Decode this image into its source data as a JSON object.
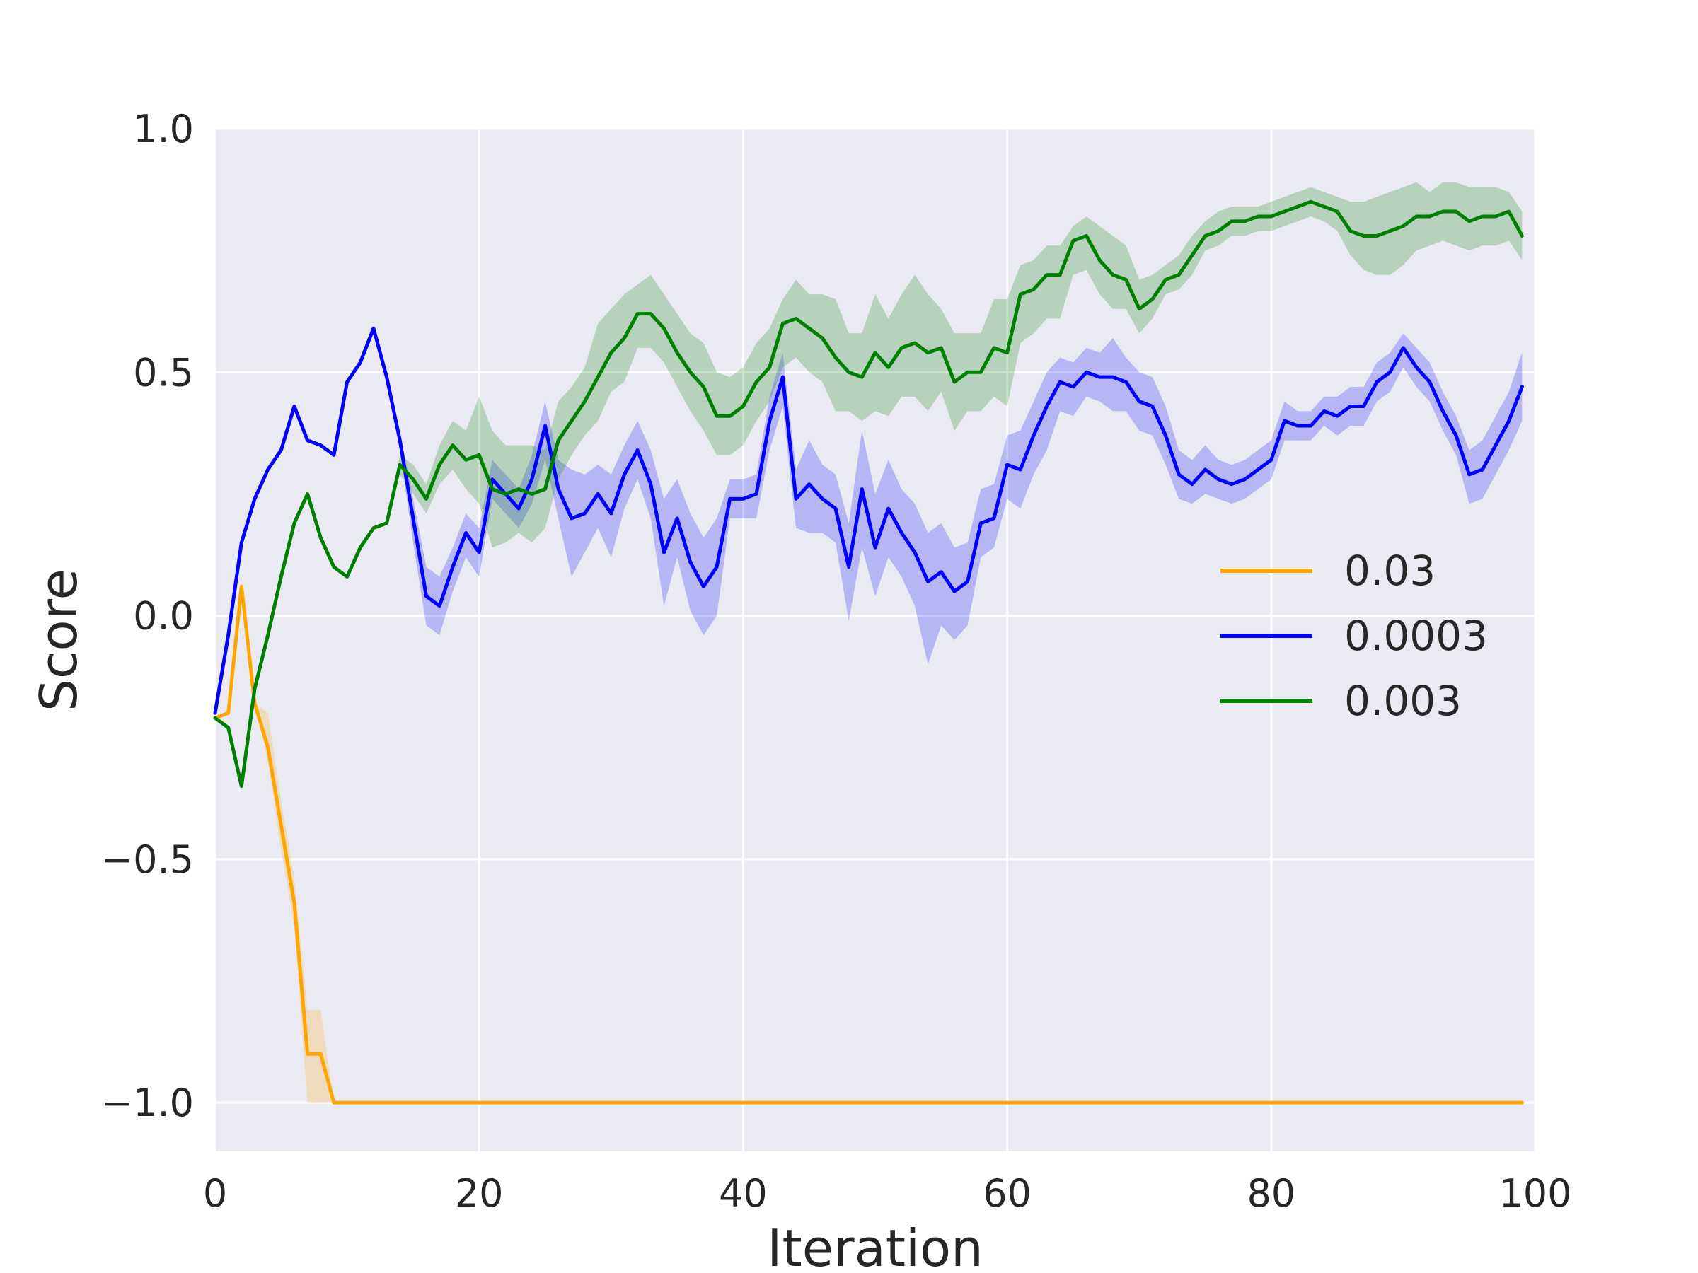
{
  "chart_data": {
    "type": "line",
    "title": "",
    "xlabel": "Iteration",
    "ylabel": "Score",
    "xlim": [
      0,
      100
    ],
    "ylim": [
      -1.1,
      1.0
    ],
    "xticks": [
      0,
      20,
      40,
      60,
      80,
      100
    ],
    "xtick_labels": [
      "0",
      "20",
      "40",
      "60",
      "80",
      "100"
    ],
    "yticks": [
      -1.0,
      -0.5,
      0.0,
      0.5,
      1.0
    ],
    "ytick_labels": [
      "−1.0",
      "−0.5",
      "0.0",
      "0.5",
      "1.0"
    ],
    "grid": true,
    "background": "#eaeaf2",
    "legend_position": "center-right",
    "series": [
      {
        "name": "0.03",
        "color": "#ffa500",
        "x": [
          0,
          1,
          2,
          3,
          4,
          5,
          6,
          7,
          8,
          9,
          10,
          15,
          20,
          30,
          40,
          50,
          60,
          70,
          80,
          90,
          99
        ],
        "y": [
          -0.21,
          -0.2,
          0.06,
          -0.18,
          -0.27,
          -0.43,
          -0.59,
          -0.9,
          -0.9,
          -1.0,
          -1.0,
          -1.0,
          -1.0,
          -1.0,
          -1.0,
          -1.0,
          -1.0,
          -1.0,
          -1.0,
          -1.0,
          -1.0
        ],
        "lower": [
          -0.21,
          -0.2,
          0.06,
          -0.18,
          -0.3,
          -0.48,
          -0.64,
          -1.0,
          -1.0,
          -1.0,
          -1.0,
          -1.0,
          -1.0,
          -1.0,
          -1.0,
          -1.0,
          -1.0,
          -1.0,
          -1.0,
          -1.0,
          -1.0
        ],
        "upper": [
          -0.21,
          -0.2,
          0.06,
          -0.18,
          -0.2,
          -0.38,
          -0.54,
          -0.81,
          -0.81,
          -1.0,
          -1.0,
          -1.0,
          -1.0,
          -1.0,
          -1.0,
          -1.0,
          -1.0,
          -1.0,
          -1.0,
          -1.0,
          -1.0
        ]
      },
      {
        "name": "0.0003",
        "color": "#0000ff",
        "x": [
          0,
          1,
          2,
          3,
          4,
          5,
          6,
          7,
          8,
          9,
          10,
          11,
          12,
          13,
          14,
          15,
          16,
          17,
          18,
          19,
          20,
          21,
          22,
          23,
          24,
          25,
          26,
          27,
          28,
          29,
          30,
          31,
          32,
          33,
          34,
          35,
          36,
          37,
          38,
          39,
          40,
          41,
          42,
          43,
          44,
          45,
          46,
          47,
          48,
          49,
          50,
          51,
          52,
          53,
          54,
          55,
          56,
          57,
          58,
          59,
          60,
          61,
          62,
          63,
          64,
          65,
          66,
          67,
          68,
          69,
          70,
          71,
          72,
          73,
          74,
          75,
          76,
          77,
          78,
          79,
          80,
          81,
          82,
          83,
          84,
          85,
          86,
          87,
          88,
          89,
          90,
          91,
          92,
          93,
          94,
          95,
          96,
          97,
          98,
          99
        ],
        "y": [
          -0.2,
          -0.04,
          0.15,
          0.24,
          0.3,
          0.34,
          0.43,
          0.36,
          0.35,
          0.33,
          0.48,
          0.52,
          0.59,
          0.49,
          0.36,
          0.2,
          0.04,
          0.02,
          0.1,
          0.17,
          0.13,
          0.28,
          0.25,
          0.22,
          0.28,
          0.39,
          0.26,
          0.2,
          0.21,
          0.25,
          0.21,
          0.29,
          0.34,
          0.27,
          0.13,
          0.2,
          0.11,
          0.06,
          0.1,
          0.24,
          0.24,
          0.25,
          0.4,
          0.49,
          0.24,
          0.27,
          0.24,
          0.22,
          0.1,
          0.26,
          0.14,
          0.22,
          0.17,
          0.13,
          0.07,
          0.09,
          0.05,
          0.07,
          0.19,
          0.2,
          0.31,
          0.3,
          0.37,
          0.43,
          0.48,
          0.47,
          0.5,
          0.49,
          0.49,
          0.48,
          0.44,
          0.43,
          0.37,
          0.29,
          0.27,
          0.3,
          0.28,
          0.27,
          0.28,
          0.3,
          0.32,
          0.4,
          0.39,
          0.39,
          0.42,
          0.41,
          0.43,
          0.43,
          0.48,
          0.5,
          0.55,
          0.51,
          0.48,
          0.42,
          0.37,
          0.29,
          0.3,
          0.35,
          0.4,
          0.47
        ],
        "lower": [
          -0.2,
          -0.04,
          0.15,
          0.24,
          0.3,
          0.34,
          0.43,
          0.36,
          0.35,
          0.33,
          0.48,
          0.52,
          0.59,
          0.49,
          0.34,
          0.15,
          -0.02,
          -0.04,
          0.05,
          0.12,
          0.08,
          0.24,
          0.21,
          0.18,
          0.23,
          0.32,
          0.2,
          0.08,
          0.13,
          0.18,
          0.12,
          0.22,
          0.28,
          0.2,
          0.02,
          0.12,
          0.01,
          -0.04,
          0.0,
          0.2,
          0.2,
          0.2,
          0.34,
          0.43,
          0.18,
          0.17,
          0.17,
          0.15,
          -0.01,
          0.14,
          0.04,
          0.12,
          0.08,
          0.02,
          -0.1,
          -0.02,
          -0.05,
          -0.02,
          0.12,
          0.14,
          0.24,
          0.22,
          0.29,
          0.34,
          0.42,
          0.41,
          0.45,
          0.44,
          0.42,
          0.42,
          0.38,
          0.37,
          0.31,
          0.24,
          0.23,
          0.25,
          0.24,
          0.23,
          0.24,
          0.26,
          0.28,
          0.36,
          0.36,
          0.36,
          0.39,
          0.37,
          0.39,
          0.39,
          0.44,
          0.46,
          0.51,
          0.47,
          0.44,
          0.38,
          0.33,
          0.23,
          0.24,
          0.29,
          0.34,
          0.4
        ],
        "upper": [
          -0.2,
          -0.04,
          0.15,
          0.24,
          0.3,
          0.34,
          0.43,
          0.36,
          0.35,
          0.33,
          0.48,
          0.52,
          0.59,
          0.49,
          0.38,
          0.24,
          0.1,
          0.08,
          0.14,
          0.21,
          0.18,
          0.32,
          0.29,
          0.26,
          0.33,
          0.44,
          0.32,
          0.3,
          0.29,
          0.31,
          0.29,
          0.35,
          0.4,
          0.34,
          0.24,
          0.28,
          0.21,
          0.16,
          0.2,
          0.28,
          0.28,
          0.29,
          0.45,
          0.54,
          0.3,
          0.36,
          0.31,
          0.29,
          0.19,
          0.38,
          0.25,
          0.32,
          0.26,
          0.23,
          0.17,
          0.19,
          0.14,
          0.15,
          0.26,
          0.27,
          0.37,
          0.38,
          0.44,
          0.5,
          0.53,
          0.52,
          0.55,
          0.54,
          0.57,
          0.53,
          0.5,
          0.49,
          0.43,
          0.34,
          0.32,
          0.35,
          0.32,
          0.31,
          0.32,
          0.34,
          0.36,
          0.44,
          0.42,
          0.42,
          0.45,
          0.45,
          0.47,
          0.47,
          0.52,
          0.54,
          0.58,
          0.55,
          0.52,
          0.46,
          0.41,
          0.34,
          0.36,
          0.41,
          0.46,
          0.54
        ]
      },
      {
        "name": "0.003",
        "color": "#008000",
        "x": [
          0,
          1,
          2,
          3,
          4,
          5,
          6,
          7,
          8,
          9,
          10,
          11,
          12,
          13,
          14,
          15,
          16,
          17,
          18,
          19,
          20,
          21,
          22,
          23,
          24,
          25,
          26,
          27,
          28,
          29,
          30,
          31,
          32,
          33,
          34,
          35,
          36,
          37,
          38,
          39,
          40,
          41,
          42,
          43,
          44,
          45,
          46,
          47,
          48,
          49,
          50,
          51,
          52,
          53,
          54,
          55,
          56,
          57,
          58,
          59,
          60,
          61,
          62,
          63,
          64,
          65,
          66,
          67,
          68,
          69,
          70,
          71,
          72,
          73,
          74,
          75,
          76,
          77,
          78,
          79,
          80,
          81,
          82,
          83,
          84,
          85,
          86,
          87,
          88,
          89,
          90,
          91,
          92,
          93,
          94,
          95,
          96,
          97,
          98,
          99
        ],
        "y": [
          -0.21,
          -0.23,
          -0.35,
          -0.15,
          -0.04,
          0.08,
          0.19,
          0.25,
          0.16,
          0.1,
          0.08,
          0.14,
          0.18,
          0.19,
          0.31,
          0.28,
          0.24,
          0.31,
          0.35,
          0.32,
          0.33,
          0.26,
          0.25,
          0.26,
          0.25,
          0.26,
          0.36,
          0.4,
          0.44,
          0.49,
          0.54,
          0.57,
          0.62,
          0.62,
          0.59,
          0.54,
          0.5,
          0.47,
          0.41,
          0.41,
          0.43,
          0.48,
          0.51,
          0.6,
          0.61,
          0.59,
          0.57,
          0.53,
          0.5,
          0.49,
          0.54,
          0.51,
          0.55,
          0.56,
          0.54,
          0.55,
          0.48,
          0.5,
          0.5,
          0.55,
          0.54,
          0.66,
          0.67,
          0.7,
          0.7,
          0.77,
          0.78,
          0.73,
          0.7,
          0.69,
          0.63,
          0.65,
          0.69,
          0.7,
          0.74,
          0.78,
          0.79,
          0.81,
          0.81,
          0.82,
          0.82,
          0.83,
          0.84,
          0.85,
          0.84,
          0.83,
          0.79,
          0.78,
          0.78,
          0.79,
          0.8,
          0.82,
          0.82,
          0.83,
          0.83,
          0.81,
          0.82,
          0.82,
          0.83,
          0.78
        ],
        "lower": [
          -0.21,
          -0.23,
          -0.35,
          -0.15,
          -0.04,
          0.08,
          0.19,
          0.25,
          0.16,
          0.1,
          0.08,
          0.14,
          0.18,
          0.19,
          0.29,
          0.25,
          0.21,
          0.27,
          0.3,
          0.26,
          0.23,
          0.14,
          0.15,
          0.17,
          0.15,
          0.18,
          0.28,
          0.33,
          0.37,
          0.4,
          0.46,
          0.48,
          0.55,
          0.55,
          0.52,
          0.47,
          0.42,
          0.38,
          0.33,
          0.33,
          0.35,
          0.4,
          0.44,
          0.51,
          0.53,
          0.5,
          0.48,
          0.42,
          0.42,
          0.4,
          0.42,
          0.41,
          0.45,
          0.45,
          0.42,
          0.46,
          0.38,
          0.42,
          0.42,
          0.45,
          0.43,
          0.56,
          0.58,
          0.61,
          0.61,
          0.7,
          0.71,
          0.66,
          0.63,
          0.63,
          0.58,
          0.61,
          0.66,
          0.67,
          0.7,
          0.75,
          0.76,
          0.78,
          0.78,
          0.79,
          0.79,
          0.8,
          0.81,
          0.82,
          0.81,
          0.79,
          0.74,
          0.71,
          0.7,
          0.7,
          0.72,
          0.75,
          0.76,
          0.77,
          0.76,
          0.75,
          0.76,
          0.76,
          0.77,
          0.73
        ],
        "upper": [
          -0.21,
          -0.23,
          -0.35,
          -0.15,
          -0.04,
          0.08,
          0.19,
          0.25,
          0.16,
          0.1,
          0.08,
          0.14,
          0.18,
          0.19,
          0.33,
          0.31,
          0.27,
          0.35,
          0.4,
          0.38,
          0.45,
          0.38,
          0.35,
          0.35,
          0.35,
          0.34,
          0.44,
          0.47,
          0.51,
          0.6,
          0.63,
          0.66,
          0.68,
          0.7,
          0.66,
          0.62,
          0.58,
          0.56,
          0.5,
          0.49,
          0.51,
          0.56,
          0.59,
          0.65,
          0.69,
          0.66,
          0.66,
          0.65,
          0.58,
          0.58,
          0.66,
          0.61,
          0.66,
          0.7,
          0.66,
          0.63,
          0.58,
          0.58,
          0.58,
          0.65,
          0.65,
          0.72,
          0.73,
          0.76,
          0.76,
          0.8,
          0.82,
          0.8,
          0.78,
          0.76,
          0.69,
          0.7,
          0.72,
          0.74,
          0.78,
          0.81,
          0.83,
          0.84,
          0.84,
          0.84,
          0.85,
          0.86,
          0.87,
          0.88,
          0.87,
          0.86,
          0.85,
          0.85,
          0.86,
          0.87,
          0.88,
          0.89,
          0.87,
          0.89,
          0.89,
          0.88,
          0.88,
          0.88,
          0.87,
          0.83
        ]
      }
    ]
  }
}
